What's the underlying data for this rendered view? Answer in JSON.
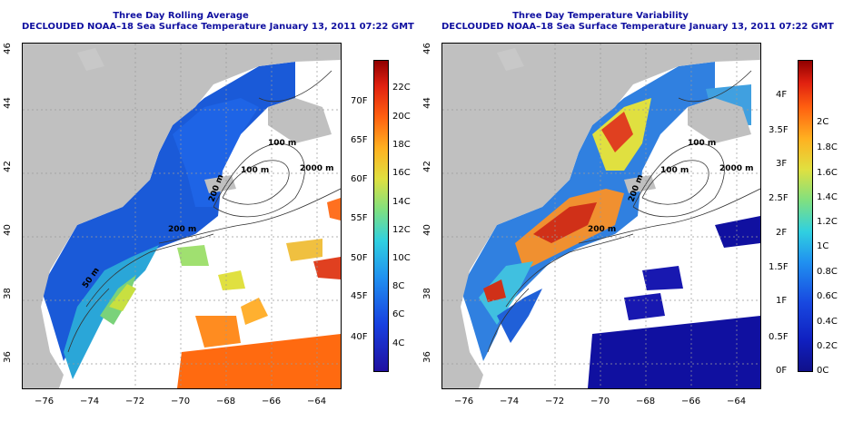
{
  "left_panel": {
    "title": "Three Day Rolling Average",
    "subtitle": "DECLOUDED NOAA–18 Sea Surface Temperature January 13, 2011 07:22 GMT",
    "colorbar_f": [
      "40F",
      "45F",
      "50F",
      "55F",
      "60F",
      "65F",
      "70F"
    ],
    "colorbar_c": [
      "4C",
      "6C",
      "8C",
      "10C",
      "12C",
      "14C",
      "16C",
      "18C",
      "20C",
      "22C"
    ],
    "contour_labels": [
      "100 m",
      "100 m",
      "2000 m",
      "200 m",
      "50 m",
      "200 m"
    ]
  },
  "right_panel": {
    "title": "Three Day Temperature Variability",
    "subtitle": "DECLOUDED NOAA–18 Sea Surface Temperature January 13, 2011 07:22 GMT",
    "colorbar_f": [
      "0F",
      "0.5F",
      "1F",
      "1.5F",
      "2F",
      "2.5F",
      "3F",
      "3.5F",
      "4F"
    ],
    "colorbar_c": [
      "0C",
      "0.2C",
      "0.4C",
      "0.6C",
      "0.8C",
      "1C",
      "1.2C",
      "1.4C",
      "1.6C",
      "1.8C",
      "2C"
    ],
    "contour_labels": [
      "100 m",
      "100 m",
      "2000 m",
      "200 m",
      "200 m"
    ]
  },
  "axes": {
    "x_ticks": [
      "−76",
      "−74",
      "−72",
      "−70",
      "−68",
      "−66",
      "−64"
    ],
    "y_ticks": [
      "36",
      "38",
      "40",
      "42",
      "44",
      "46"
    ]
  },
  "colors": {
    "title": "#1010a0",
    "land": "#c0c0c0"
  }
}
